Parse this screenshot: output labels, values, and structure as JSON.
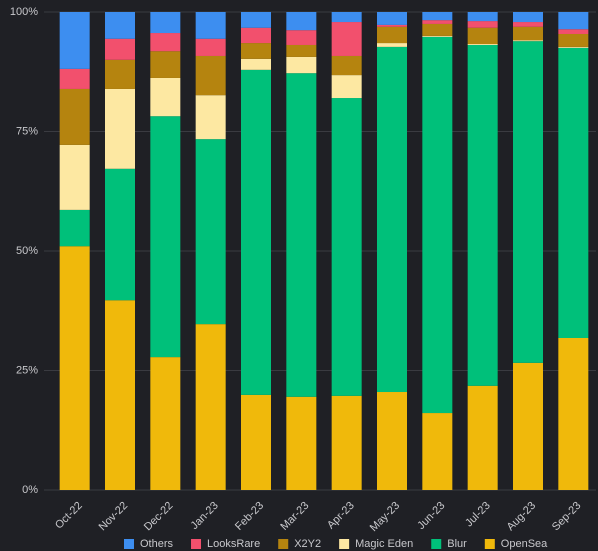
{
  "chart_data": {
    "type": "stacked_bar",
    "categories": [
      "Oct-22",
      "Nov-22",
      "Dec-22",
      "Jan-23",
      "Feb-23",
      "Mar-23",
      "Apr-23",
      "May-23",
      "Jun-23",
      "Jul-23",
      "Aug-23",
      "Sep-23"
    ],
    "series": [
      {
        "name": "OpenSea",
        "color": "#f0b90b",
        "values": [
          51.0,
          39.7,
          27.8,
          34.7,
          19.9,
          19.5,
          19.7,
          20.5,
          16.1,
          21.8,
          26.6,
          31.8
        ]
      },
      {
        "name": "Blur",
        "color": "#00c07a",
        "values": [
          7.6,
          27.5,
          50.4,
          38.7,
          68.0,
          67.7,
          62.3,
          72.2,
          78.7,
          71.3,
          67.3,
          60.7
        ]
      },
      {
        "name": "Magic Eden",
        "color": "#fde8a2",
        "values": [
          13.6,
          16.7,
          8.0,
          9.2,
          2.3,
          3.4,
          4.8,
          0.8,
          0.2,
          0.2,
          0.2,
          0.2
        ]
      },
      {
        "name": "X2Y2",
        "color": "#b5840f",
        "values": [
          11.7,
          6.1,
          5.6,
          8.2,
          3.3,
          2.5,
          4.0,
          3.4,
          2.5,
          3.4,
          2.8,
          2.7
        ]
      },
      {
        "name": "LooksRare",
        "color": "#f2506d",
        "values": [
          4.2,
          4.4,
          3.8,
          3.6,
          3.2,
          3.1,
          7.1,
          0.4,
          0.8,
          1.4,
          1.0,
          1.0
        ]
      },
      {
        "name": "Others",
        "color": "#3d8ef0",
        "values": [
          11.9,
          5.6,
          4.4,
          5.6,
          3.3,
          3.8,
          2.1,
          2.7,
          1.7,
          1.9,
          2.1,
          3.6
        ]
      }
    ],
    "ylim": [
      0,
      100
    ],
    "yticks": [
      {
        "value": 0,
        "label": "0%"
      },
      {
        "value": 25,
        "label": "25%"
      },
      {
        "value": 50,
        "label": "50%"
      },
      {
        "value": 75,
        "label": "75%"
      },
      {
        "value": 100,
        "label": "100%"
      }
    ],
    "grid": true,
    "legend": "bottom"
  }
}
